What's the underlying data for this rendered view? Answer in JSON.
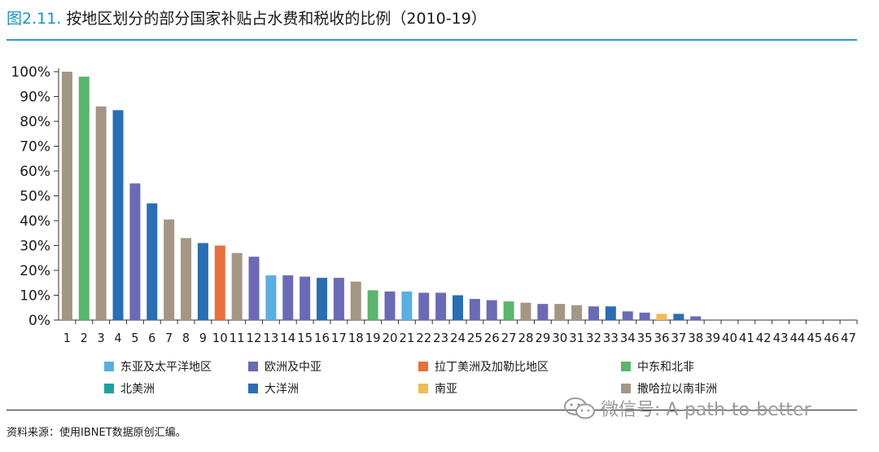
{
  "title": {
    "figure": "图2.11.",
    "text": "按地区划分的部分国家补贴占水费和税收的比例（2010-19）"
  },
  "source": "资料来源：使用IBNET数据原创汇编。",
  "watermark": "微信号: A-path-to-better",
  "watermark_icon": "wechat-icon",
  "legend": [
    {
      "label": "东亚及太平洋地区",
      "color": "#5aaee0"
    },
    {
      "label": "欧洲及中亚",
      "color": "#6b6ab4"
    },
    {
      "label": "拉丁美洲及加勒比地区",
      "color": "#e96f3c"
    },
    {
      "label": "中东和北非",
      "color": "#5ab56e"
    },
    {
      "label": "北美洲",
      "color": "#1aa3a3"
    },
    {
      "label": "大洋洲",
      "color": "#2b6db3"
    },
    {
      "label": "南亚",
      "color": "#f0bb55"
    },
    {
      "label": "撒哈拉以南非洲",
      "color": "#a49684"
    }
  ],
  "chart_data": {
    "type": "bar",
    "categories": [
      "1",
      "2",
      "3",
      "4",
      "5",
      "6",
      "7",
      "8",
      "9",
      "10",
      "11",
      "12",
      "13",
      "14",
      "15",
      "16",
      "17",
      "18",
      "19",
      "20",
      "21",
      "22",
      "23",
      "24",
      "25",
      "26",
      "27",
      "28",
      "29",
      "30",
      "31",
      "32",
      "33",
      "34",
      "35",
      "36",
      "37",
      "38",
      "39",
      "40",
      "41",
      "42",
      "43",
      "44",
      "45",
      "46",
      "47"
    ],
    "values": [
      100,
      98,
      86,
      84.5,
      55,
      47,
      40.5,
      33,
      31,
      30,
      27,
      25.5,
      18,
      18,
      17.5,
      17,
      17,
      15.5,
      12,
      11.5,
      11.5,
      11,
      11,
      10,
      8.5,
      8,
      7.5,
      7,
      6.5,
      6.5,
      6,
      5.5,
      5.5,
      3.5,
      3,
      2.5,
      2.5,
      1.5,
      0,
      0,
      0,
      0,
      0,
      0,
      0,
      0,
      0
    ],
    "regions": [
      "撒哈拉以南非洲",
      "中东和北非",
      "撒哈拉以南非洲",
      "大洋洲",
      "欧洲及中亚",
      "大洋洲",
      "撒哈拉以南非洲",
      "撒哈拉以南非洲",
      "大洋洲",
      "拉丁美洲及加勒比地区",
      "撒哈拉以南非洲",
      "欧洲及中亚",
      "东亚及太平洋地区",
      "欧洲及中亚",
      "欧洲及中亚",
      "大洋洲",
      "欧洲及中亚",
      "撒哈拉以南非洲",
      "中东和北非",
      "欧洲及中亚",
      "东亚及太平洋地区",
      "欧洲及中亚",
      "欧洲及中亚",
      "大洋洲",
      "欧洲及中亚",
      "欧洲及中亚",
      "中东和北非",
      "撒哈拉以南非洲",
      "欧洲及中亚",
      "撒哈拉以南非洲",
      "撒哈拉以南非洲",
      "欧洲及中亚",
      "大洋洲",
      "欧洲及中亚",
      "欧洲及中亚",
      "南亚",
      "大洋洲",
      "欧洲及中亚",
      "欧洲及中亚",
      "欧洲及中亚",
      "欧洲及中亚",
      "欧洲及中亚",
      "欧洲及中亚",
      "欧洲及中亚",
      "欧洲及中亚",
      "欧洲及中亚",
      "欧洲及中亚"
    ],
    "yticks": [
      "0%",
      "10%",
      "20%",
      "30%",
      "40%",
      "50%",
      "60%",
      "70%",
      "80%",
      "90%",
      "100%"
    ],
    "ylim": [
      0,
      100
    ],
    "grid": false,
    "legend_position": "bottom"
  }
}
